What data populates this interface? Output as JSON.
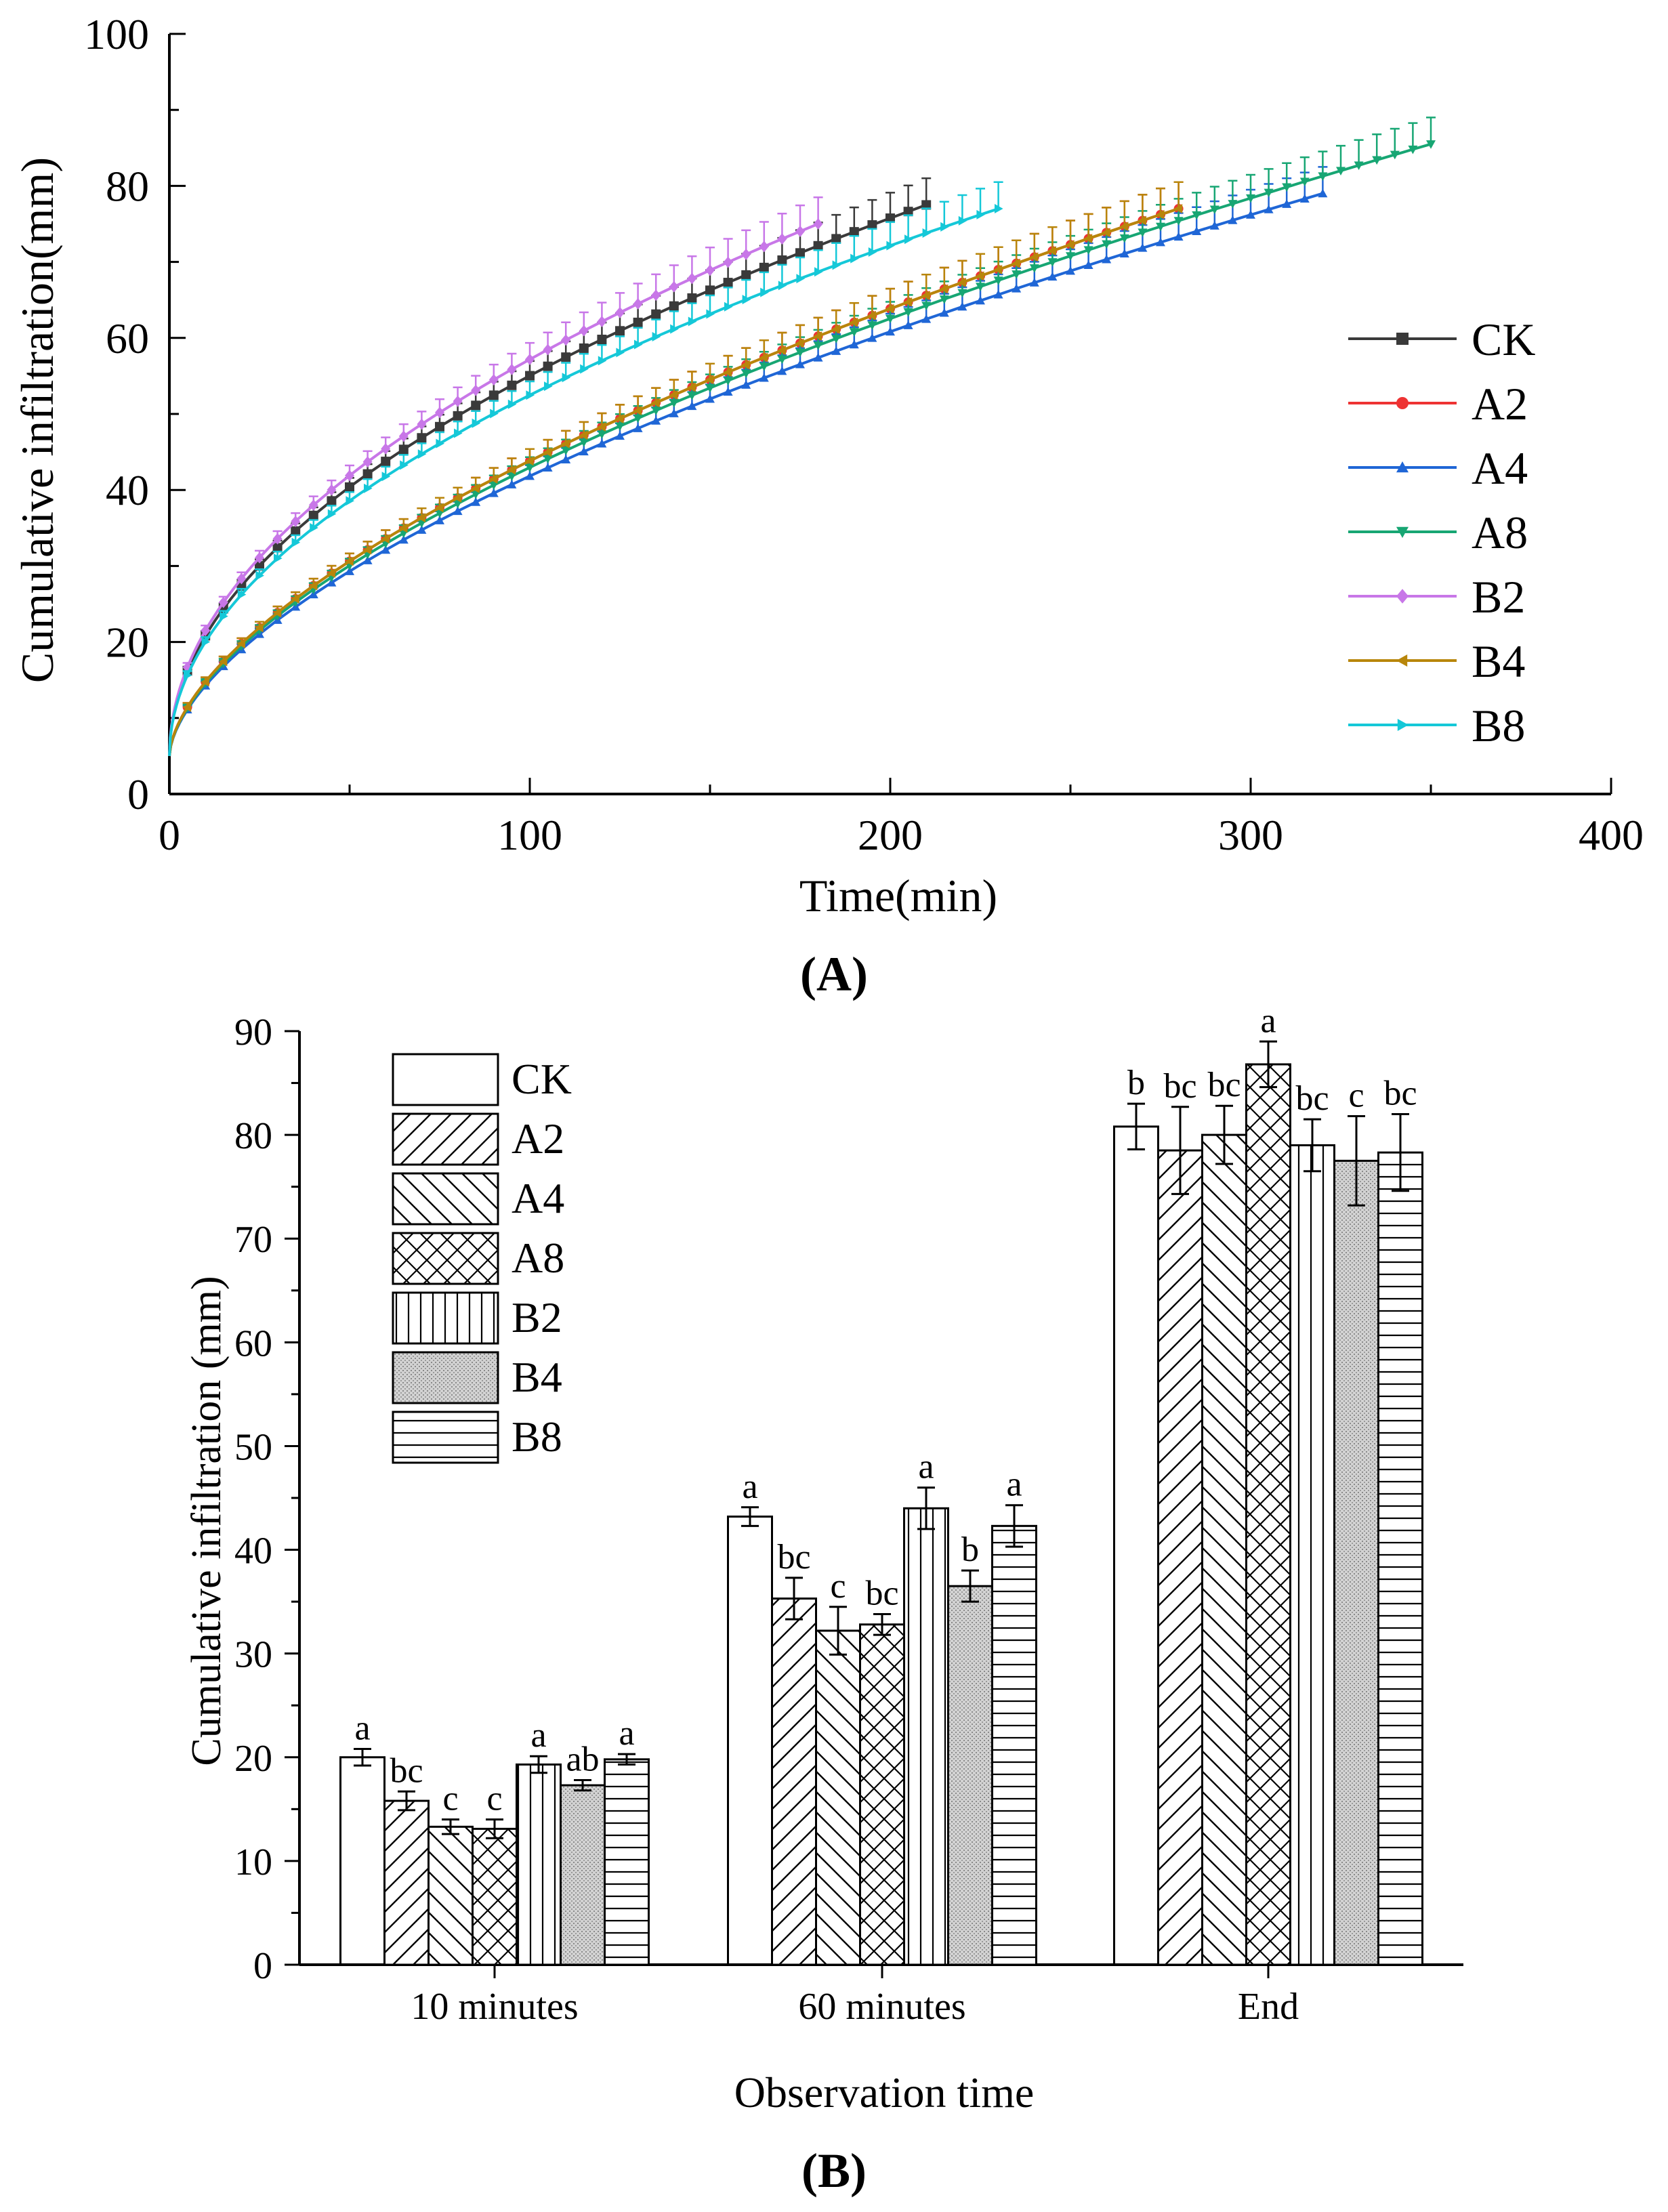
{
  "panels": {
    "a_label": "(A)",
    "b_label": "(B)"
  },
  "chart_data": [
    {
      "type": "line",
      "panel": "A",
      "title": "",
      "xlabel": "Time(min)",
      "ylabel": "Cumulative infiltration(mm)",
      "xlim": [
        0,
        400
      ],
      "ylim": [
        0,
        100
      ],
      "xticks": [
        0,
        100,
        200,
        300,
        400
      ],
      "yticks": [
        0,
        20,
        40,
        60,
        80,
        100
      ],
      "grid": false,
      "legend_position": "right",
      "series": [
        {
          "name": "CK",
          "color": "#3a3a3a",
          "marker": "square",
          "end_time": 210,
          "end_value": 77.5,
          "shape": 0.5
        },
        {
          "name": "A2",
          "color": "#ee3333",
          "marker": "circle",
          "end_time": 280,
          "end_value": 77.0,
          "shape": 0.6
        },
        {
          "name": "A4",
          "color": "#1f66d6",
          "marker": "triangle-up",
          "end_time": 320,
          "end_value": 79.0,
          "shape": 0.6
        },
        {
          "name": "A8",
          "color": "#17a673",
          "marker": "triangle-down",
          "end_time": 350,
          "end_value": 85.5,
          "shape": 0.6
        },
        {
          "name": "B2",
          "color": "#c877e8",
          "marker": "diamond",
          "end_time": 180,
          "end_value": 75.0,
          "shape": 0.5
        },
        {
          "name": "B4",
          "color": "#b8860b",
          "marker": "triangle-left",
          "end_time": 280,
          "end_value": 77.0,
          "shape": 0.6
        },
        {
          "name": "B8",
          "color": "#15c8d8",
          "marker": "triangle-right",
          "end_time": 230,
          "end_value": 77.0,
          "shape": 0.5
        }
      ]
    },
    {
      "type": "bar",
      "panel": "B",
      "title": "",
      "xlabel": "Observation time",
      "ylabel": "Cumulative infiltration (mm)",
      "ylim": [
        0,
        90
      ],
      "yticks": [
        0,
        10,
        20,
        30,
        40,
        50,
        60,
        70,
        80,
        90
      ],
      "categories": [
        "10 minutes",
        "60 minutes",
        "End"
      ],
      "legend_position": "top-left",
      "series": [
        {
          "name": "CK",
          "pattern": "blank",
          "values": [
            20.0,
            43.2,
            80.8
          ],
          "errors": [
            0.8,
            0.9,
            2.2
          ],
          "letters": [
            "a",
            "a",
            "b"
          ]
        },
        {
          "name": "A2",
          "pattern": "diag-fwd",
          "values": [
            15.8,
            35.3,
            78.5
          ],
          "errors": [
            0.9,
            2.0,
            4.2
          ],
          "letters": [
            "bc",
            "bc",
            "bc"
          ]
        },
        {
          "name": "A4",
          "pattern": "diag-back",
          "values": [
            13.3,
            32.2,
            80.0
          ],
          "errors": [
            0.7,
            2.3,
            2.8
          ],
          "letters": [
            "c",
            "c",
            "bc"
          ]
        },
        {
          "name": "A8",
          "pattern": "cross",
          "values": [
            13.1,
            32.8,
            86.8
          ],
          "errors": [
            0.9,
            1.0,
            2.2
          ],
          "letters": [
            "c",
            "bc",
            "a"
          ]
        },
        {
          "name": "B2",
          "pattern": "vertical",
          "values": [
            19.3,
            44.0,
            79.0
          ],
          "errors": [
            0.8,
            2.0,
            2.5
          ],
          "letters": [
            "a",
            "a",
            "bc"
          ]
        },
        {
          "name": "B4",
          "pattern": "dots",
          "values": [
            17.3,
            36.5,
            77.5
          ],
          "errors": [
            0.5,
            1.5,
            4.3
          ],
          "letters": [
            "ab",
            "b",
            "c"
          ]
        },
        {
          "name": "B8",
          "pattern": "horizontal",
          "values": [
            19.8,
            42.3,
            78.3
          ],
          "errors": [
            0.5,
            2.0,
            3.7
          ],
          "letters": [
            "a",
            "a",
            "bc"
          ]
        }
      ]
    }
  ]
}
